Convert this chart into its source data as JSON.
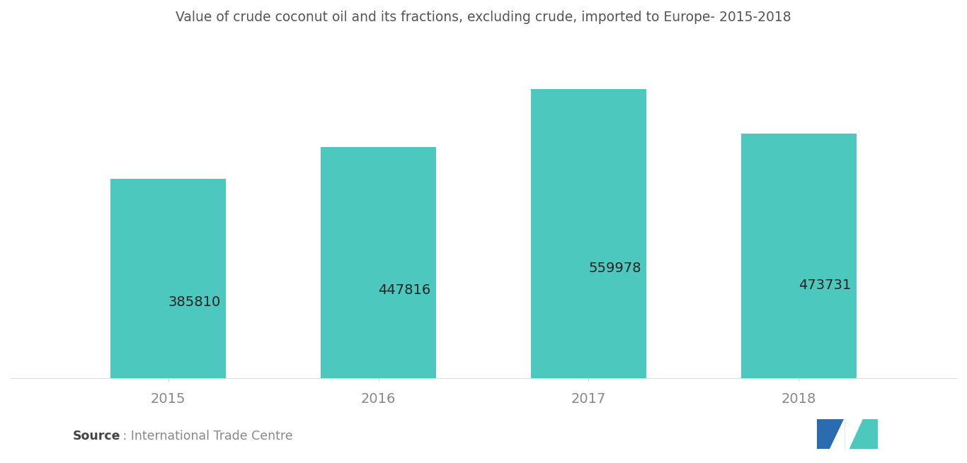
{
  "title": "Value of crude coconut oil and its fractions, excluding crude, imported to Europe- 2015-2018",
  "categories": [
    "2015",
    "2016",
    "2017",
    "2018"
  ],
  "values": [
    385810,
    447816,
    559978,
    473731
  ],
  "bar_color": "#4DC8BE",
  "bar_edge_color": "none",
  "value_labels": [
    "385810",
    "447816",
    "559978",
    "473731"
  ],
  "source_bold": "Source",
  "source_rest": " : International Trade Centre",
  "title_fontsize": 13.5,
  "label_fontsize": 14,
  "tick_fontsize": 14,
  "source_fontsize": 12.5,
  "background_color": "#ffffff",
  "bar_width": 0.55,
  "ylim": [
    0,
    650000
  ],
  "label_color": "#222222",
  "tick_color": "#888888",
  "title_color": "#555555",
  "logo_dark": "#2B6CB0",
  "logo_teal": "#4DC8BE"
}
